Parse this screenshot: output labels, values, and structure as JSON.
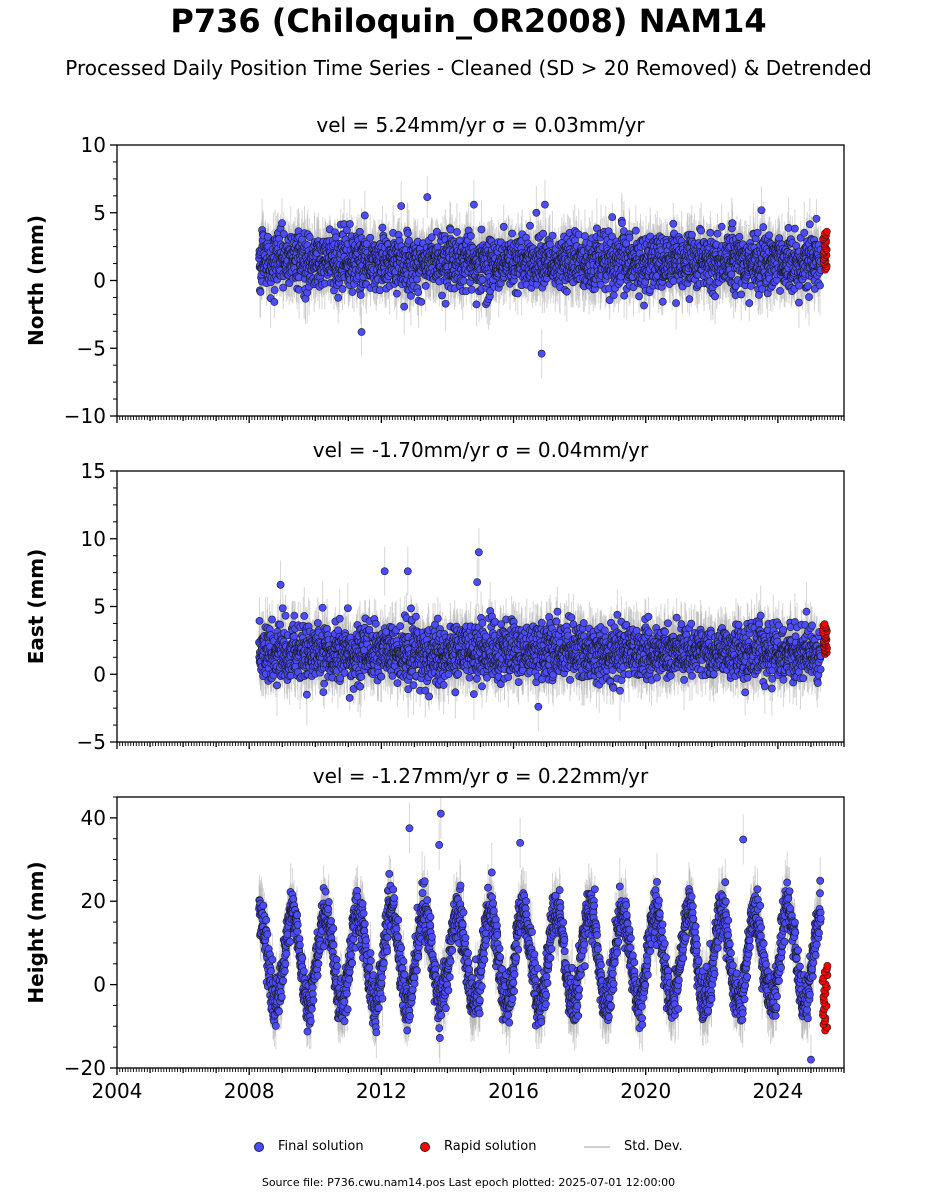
{
  "title": "P736 (Chiloquin_OR2008) NAM14",
  "subtitle": "Processed Daily Position Time Series - Cleaned (SD > 20 Removed) & Detrended",
  "legend": {
    "final": "Final solution",
    "rapid": "Rapid solution",
    "std": "Std. Dev."
  },
  "footer": "Source file: P736.cwu.nam14.pos  Last epoch plotted: 2025-07-01 12:00:00",
  "colors": {
    "final": "#4b4bff",
    "rapid": "#ff0000",
    "std": "#b5b5b5",
    "edge": "#1a1a1a"
  },
  "chart_data": [
    {
      "type": "scatter",
      "panel": "north",
      "title": "vel = 5.24mm/yr   σ = 0.03mm/yr",
      "xlabel": "",
      "ylabel": "North (mm)",
      "xlim": [
        2004.0,
        2026.0
      ],
      "ylim": [
        -10,
        10
      ],
      "yticks": [
        -10,
        -5,
        0,
        5,
        10
      ],
      "ytick_labels": [
        "−10",
        "−5",
        "0",
        "5",
        "10"
      ],
      "xticks": [
        2004,
        2008,
        2012,
        2016,
        2020,
        2024
      ],
      "xtick_labels": [],
      "series_model": {
        "start": 2008.3,
        "end": 2025.3,
        "mean": 1.4,
        "amp": 0.0,
        "noise": 1.0,
        "sd": 0.9
      },
      "outliers": [
        [
          2016.85,
          -5.4
        ],
        [
          2016.95,
          5.6
        ],
        [
          2014.8,
          5.6
        ],
        [
          2012.6,
          5.5
        ],
        [
          2011.5,
          4.8
        ],
        [
          2011.4,
          -3.8
        ]
      ],
      "series": [
        {
          "name": "Final solution",
          "x_range": [
            2008.3,
            2025.25
          ],
          "y_range": [
            -5.4,
            5.9
          ]
        },
        {
          "name": "Rapid solution",
          "x_range": [
            2025.35,
            2025.5
          ],
          "y_range": [
            0.8,
            3.6
          ]
        }
      ]
    },
    {
      "type": "scatter",
      "panel": "east",
      "title": "vel = -1.70mm/yr   σ = 0.04mm/yr",
      "xlabel": "",
      "ylabel": "East (mm)",
      "xlim": [
        2004.0,
        2026.0
      ],
      "ylim": [
        -5,
        15
      ],
      "yticks": [
        -5,
        0,
        5,
        10,
        15
      ],
      "ytick_labels": [
        "−5",
        "0",
        "5",
        "10",
        "15"
      ],
      "xticks": [
        2004,
        2008,
        2012,
        2016,
        2020,
        2024
      ],
      "xtick_labels": [],
      "series_model": {
        "start": 2008.3,
        "end": 2025.3,
        "mean": 1.6,
        "amp": 0.0,
        "noise": 1.0,
        "sd": 0.9
      },
      "outliers": [
        [
          2014.95,
          9.0
        ],
        [
          2014.9,
          6.8
        ],
        [
          2012.8,
          7.6
        ],
        [
          2012.1,
          7.6
        ],
        [
          2008.95,
          6.6
        ],
        [
          2016.75,
          -2.4
        ]
      ],
      "series": [
        {
          "name": "Final solution",
          "x_range": [
            2008.3,
            2025.25
          ],
          "y_range": [
            -2.4,
            9.0
          ]
        },
        {
          "name": "Rapid solution",
          "x_range": [
            2025.35,
            2025.5
          ],
          "y_range": [
            1.5,
            3.7
          ]
        }
      ]
    },
    {
      "type": "scatter",
      "panel": "height",
      "title": "vel = -1.27mm/yr   σ = 0.22mm/yr",
      "xlabel": "",
      "ylabel": "Height (mm)",
      "xlim": [
        2004.0,
        2026.0
      ],
      "ylim": [
        -20,
        45
      ],
      "yticks": [
        -20,
        0,
        20,
        40
      ],
      "ytick_labels": [
        "−20",
        "0",
        "20",
        "40"
      ],
      "xticks": [
        2004,
        2008,
        2012,
        2016,
        2020,
        2024
      ],
      "xtick_labels": [
        "2004",
        "2008",
        "2012",
        "2016",
        "2020",
        "2024"
      ],
      "series_model": {
        "start": 2008.3,
        "end": 2025.3,
        "mean": 6.5,
        "amp": 11.0,
        "noise": 3.0,
        "sd": 3.0
      },
      "outliers": [
        [
          2013.8,
          41.0
        ],
        [
          2012.85,
          37.5
        ],
        [
          2022.95,
          34.8
        ],
        [
          2016.2,
          34.0
        ],
        [
          2013.75,
          33.5
        ],
        [
          2025.0,
          -18.0
        ]
      ],
      "series": [
        {
          "name": "Final solution",
          "x_range": [
            2008.3,
            2025.25
          ],
          "y_range": [
            -18.0,
            41.0
          ]
        },
        {
          "name": "Rapid solution",
          "x_range": [
            2025.35,
            2025.5
          ],
          "y_range": [
            -11.0,
            4.5
          ]
        }
      ]
    }
  ]
}
